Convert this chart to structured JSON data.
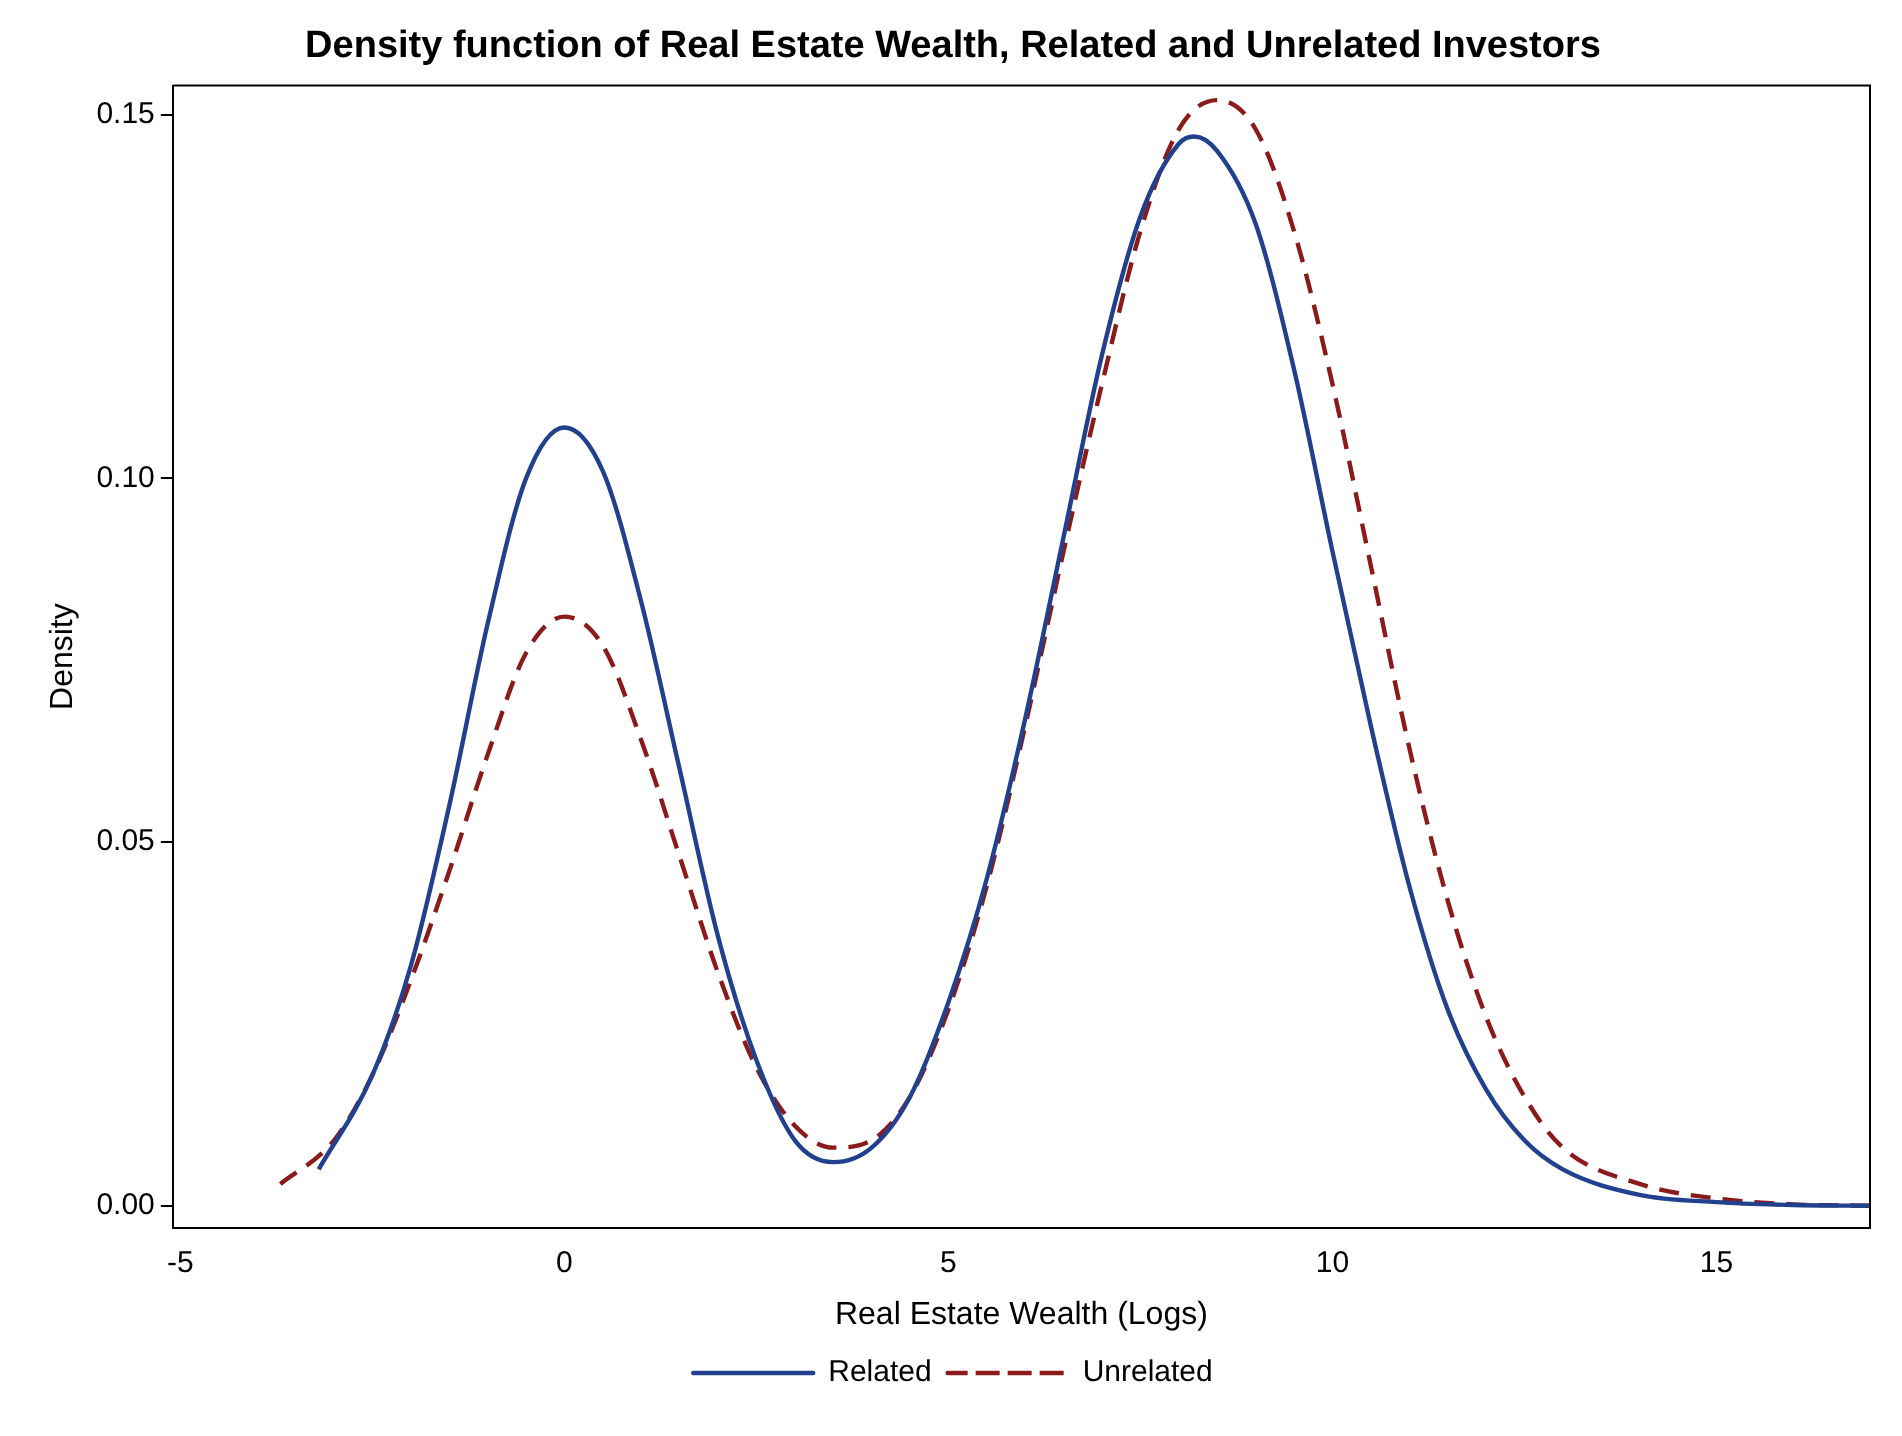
{
  "chart_data": {
    "type": "line",
    "title": "Density function of Real Estate Wealth, Related and Unrelated Investors",
    "xlabel": "Real Estate Wealth (Logs)",
    "ylabel": "Density",
    "xlim": [
      -5.1,
      17
    ],
    "ylim": [
      -0.003,
      0.154
    ],
    "xticks": [
      -5,
      0,
      5,
      10,
      15
    ],
    "yticks": [
      {
        "value": 0,
        "label": "0.00"
      },
      {
        "value": 0.05,
        "label": "0.05"
      },
      {
        "value": 0.1,
        "label": "0.10"
      },
      {
        "value": 0.15,
        "label": "0.15"
      }
    ],
    "grid": false,
    "legend": "bottom",
    "marker": "none",
    "series": [
      {
        "name": "Related",
        "color": "#21408e",
        "line_style": "solid",
        "x": [
          -3.2,
          -2.5,
          -2,
          -1.5,
          -1,
          -0.5,
          0,
          0.5,
          1,
          1.5,
          2,
          2.5,
          3,
          3.5,
          4,
          4.5,
          5,
          5.5,
          6,
          6.5,
          7,
          7.5,
          8,
          8.2,
          8.5,
          9,
          9.5,
          10,
          10.5,
          11,
          11.5,
          12,
          12.5,
          13,
          14,
          15,
          16,
          17
        ],
        "values": [
          0.005,
          0.018,
          0.033,
          0.055,
          0.08,
          0.1,
          0.107,
          0.101,
          0.083,
          0.06,
          0.037,
          0.02,
          0.009,
          0.006,
          0.008,
          0.015,
          0.028,
          0.045,
          0.067,
          0.092,
          0.117,
          0.136,
          0.146,
          0.147,
          0.145,
          0.135,
          0.115,
          0.09,
          0.066,
          0.044,
          0.027,
          0.016,
          0.009,
          0.005,
          0.0015,
          0.0005,
          0.0001,
          0
        ]
      },
      {
        "name": "Unrelated",
        "color": "#8b1a1a",
        "line_style": "dashed",
        "x": [
          -3.7,
          -3,
          -2.5,
          -2,
          -1.5,
          -1,
          -0.5,
          0,
          0.5,
          1,
          1.5,
          2,
          2.5,
          3,
          3.5,
          4,
          4.5,
          5,
          5.5,
          6,
          6.5,
          7,
          7.5,
          8,
          8.5,
          9,
          9.5,
          10,
          10.5,
          11,
          11.5,
          12,
          12.5,
          13,
          14,
          15,
          16,
          17
        ],
        "values": [
          0.003,
          0.009,
          0.018,
          0.031,
          0.046,
          0.062,
          0.076,
          0.081,
          0.077,
          0.064,
          0.048,
          0.032,
          0.019,
          0.011,
          0.008,
          0.009,
          0.015,
          0.027,
          0.044,
          0.066,
          0.09,
          0.113,
          0.134,
          0.148,
          0.152,
          0.148,
          0.134,
          0.113,
          0.088,
          0.063,
          0.042,
          0.026,
          0.015,
          0.008,
          0.003,
          0.001,
          0.0002,
          0
        ]
      }
    ]
  }
}
